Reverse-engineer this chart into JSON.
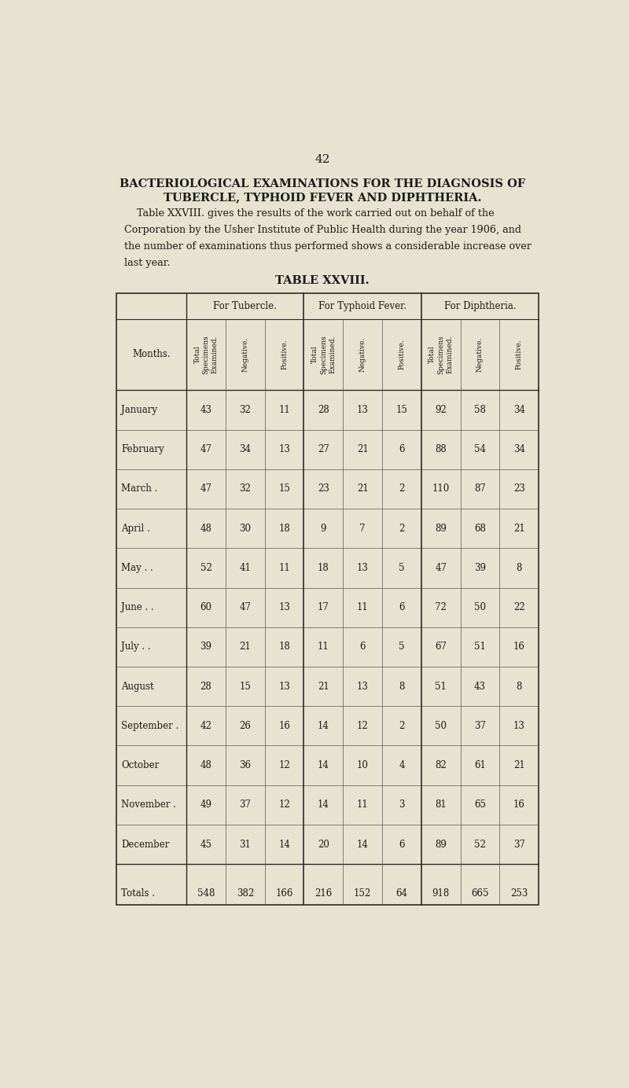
{
  "page_number": "42",
  "title_line1": "BACTERIOLOGICAL EXAMINATIONS FOR THE DIAGNOSIS OF",
  "title_line2": "TUBERCLE, TYPHOID FEVER AND DIPHTHERIA.",
  "intro_para": "    Table XXVIII. gives the results of the work carried out on behalf of the Corporation by the Usher Institute of Public Health during the year 1906, and the number of examinations thus performed shows a considerable increase over last year.",
  "table_title": "TABLE XXVIII.",
  "bg_color": "#e8e3d0",
  "text_color": "#1a1a1a",
  "col_group_headers": [
    "For Tubercle.",
    "For Typhoid Fever.",
    "For Diphtheria."
  ],
  "col_sub_headers": [
    "Total\nSpecimens\nExamined.",
    "Negative.",
    "Positive.",
    "Total\nSpecimens\nExamined.",
    "Negative.",
    "Positive.",
    "Total\nSpecimens\nExamined.",
    "Negative.",
    "Positive."
  ],
  "row_header": "Months.",
  "months": [
    "January     .",
    "February    .",
    "March .     .",
    "April .     .",
    "May    .    .",
    "June  .     .",
    "July   .    .",
    "August      .",
    "September .",
    "October     .",
    "November  .",
    "December   ."
  ],
  "months_display": [
    "January",
    "February",
    "March .",
    "April .",
    "May . .",
    "June . .",
    "July . .",
    "August",
    "September .",
    "October",
    "November .",
    "December"
  ],
  "data": [
    [
      43,
      32,
      11,
      28,
      13,
      15,
      92,
      58,
      34
    ],
    [
      47,
      34,
      13,
      27,
      21,
      6,
      88,
      54,
      34
    ],
    [
      47,
      32,
      15,
      23,
      21,
      2,
      110,
      87,
      23
    ],
    [
      48,
      30,
      18,
      9,
      7,
      2,
      89,
      68,
      21
    ],
    [
      52,
      41,
      11,
      18,
      13,
      5,
      47,
      39,
      8
    ],
    [
      60,
      47,
      13,
      17,
      11,
      6,
      72,
      50,
      22
    ],
    [
      39,
      21,
      18,
      11,
      6,
      5,
      67,
      51,
      16
    ],
    [
      28,
      15,
      13,
      21,
      13,
      8,
      51,
      43,
      8
    ],
    [
      42,
      26,
      16,
      14,
      12,
      2,
      50,
      37,
      13
    ],
    [
      48,
      36,
      12,
      14,
      10,
      4,
      82,
      61,
      21
    ],
    [
      49,
      37,
      12,
      14,
      11,
      3,
      81,
      65,
      16
    ],
    [
      45,
      31,
      14,
      20,
      14,
      6,
      89,
      52,
      37
    ]
  ],
  "totals": [
    548,
    382,
    166,
    216,
    152,
    64,
    918,
    665,
    253
  ],
  "totals_label": "Totals ."
}
